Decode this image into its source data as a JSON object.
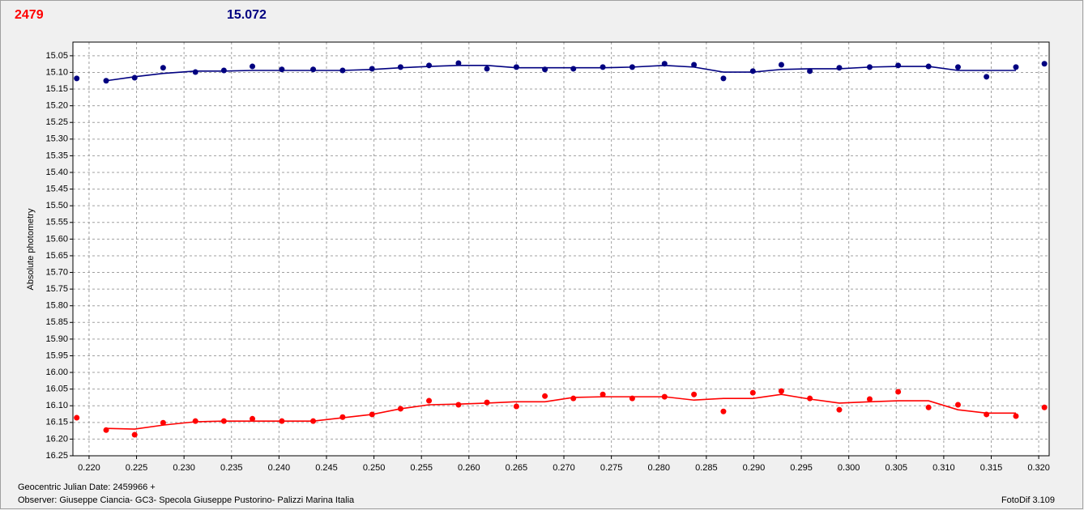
{
  "chart_data": {
    "type": "scatter",
    "header_labels": [
      {
        "text": "2479",
        "color": "#ff0000"
      },
      {
        "text": "15.072",
        "color": "#000080"
      }
    ],
    "ylabel": "Absolute photometry",
    "footer": [
      "Geocentric Julian Date: 2459966 +",
      "Observer: Giuseppe Ciancia- GC3- Specola Giuseppe Pustorino- Palizzi Marina Italia"
    ],
    "credit": "FotoDif 3.109",
    "grid": true,
    "xlim": [
      0.2183,
      0.3211
    ],
    "ylim": [
      16.25,
      15.009
    ],
    "xticks": [
      {
        "value": 0.22,
        "label": "0.220"
      },
      0.225,
      {
        "value": 0.23,
        "label": "0.230"
      },
      0.235,
      {
        "value": 0.24,
        "label": "0.240"
      },
      0.245,
      {
        "value": 0.25,
        "label": "0.250"
      },
      0.255,
      {
        "value": 0.26,
        "label": "0.260"
      },
      0.265,
      {
        "value": 0.27,
        "label": "0.270"
      },
      0.275,
      {
        "value": 0.28,
        "label": "0.280"
      },
      0.285,
      {
        "value": 0.29,
        "label": "0.290"
      },
      0.295,
      {
        "value": 0.3,
        "label": "0.300"
      },
      0.305,
      {
        "value": 0.31,
        "label": "0.310"
      },
      0.315,
      {
        "value": 0.32,
        "label": "0.320"
      }
    ],
    "yticks": [
      15.05,
      {
        "value": 15.1,
        "label": "15.10"
      },
      15.15,
      {
        "value": 15.2,
        "label": "15.20"
      },
      15.25,
      {
        "value": 15.3,
        "label": "15.30"
      },
      15.35,
      {
        "value": 15.4,
        "label": "15.40"
      },
      15.45,
      {
        "value": 15.5,
        "label": "15.50"
      },
      15.55,
      {
        "value": 15.6,
        "label": "15.60"
      },
      15.65,
      {
        "value": 15.7,
        "label": "15.70"
      },
      15.75,
      {
        "value": 15.8,
        "label": "15.80"
      },
      15.85,
      {
        "value": 15.9,
        "label": "15.90"
      },
      15.95,
      {
        "value": 16,
        "label": "16.00"
      },
      16.05,
      {
        "value": 16.1,
        "label": "16.10"
      },
      16.15,
      {
        "value": 16.2,
        "label": "16.20"
      },
      16.25
    ],
    "x": [
      0.2187,
      0.2218,
      0.2248,
      0.2278,
      0.2312,
      0.2342,
      0.2372,
      0.2403,
      0.2436,
      0.2467,
      0.2498,
      0.2528,
      0.2558,
      0.2589,
      0.2619,
      0.265,
      0.268,
      0.271,
      0.2741,
      0.2772,
      0.2806,
      0.2837,
      0.2868,
      0.2899,
      0.2929,
      0.2959,
      0.299,
      0.3022,
      0.3052,
      0.3084,
      0.3115,
      0.3145,
      0.3176,
      0.3206
    ],
    "series": [
      {
        "style": "markers",
        "color": "#000080",
        "values": [
          15.118,
          15.125,
          15.116,
          15.086,
          15.099,
          15.094,
          15.082,
          15.091,
          15.091,
          15.094,
          15.089,
          15.084,
          15.079,
          15.072,
          15.089,
          15.084,
          15.091,
          15.089,
          15.084,
          15.084,
          15.074,
          15.077,
          15.118,
          15.096,
          15.077,
          15.096,
          15.086,
          15.084,
          15.079,
          15.082,
          15.084,
          15.113,
          15.084,
          15.074
        ]
      },
      {
        "style": "line",
        "color": "#000080",
        "values": [
          null,
          15.125,
          15.113,
          15.103,
          15.096,
          15.096,
          15.094,
          15.094,
          15.094,
          15.094,
          15.091,
          15.086,
          15.082,
          15.079,
          15.079,
          15.086,
          15.086,
          15.086,
          15.086,
          15.084,
          15.079,
          15.084,
          15.099,
          15.099,
          15.091,
          15.089,
          15.089,
          15.084,
          15.082,
          15.082,
          15.094,
          15.094,
          15.094,
          null
        ]
      },
      {
        "style": "markers",
        "color": "#ff0000",
        "values": [
          16.136,
          16.173,
          16.187,
          16.151,
          16.146,
          16.146,
          16.139,
          16.146,
          16.146,
          16.134,
          16.126,
          16.109,
          16.085,
          16.097,
          16.09,
          16.102,
          16.071,
          16.078,
          16.066,
          16.078,
          16.073,
          16.066,
          16.117,
          16.061,
          16.056,
          16.078,
          16.112,
          16.08,
          16.058,
          16.105,
          16.097,
          16.126,
          16.131,
          16.105
        ]
      },
      {
        "style": "line",
        "color": "#ff0000",
        "values": [
          null,
          16.168,
          16.17,
          16.158,
          16.148,
          16.146,
          16.146,
          16.146,
          16.146,
          16.136,
          16.126,
          16.109,
          16.097,
          16.095,
          16.092,
          16.088,
          16.088,
          16.075,
          16.073,
          16.073,
          16.073,
          16.083,
          16.078,
          16.078,
          16.066,
          16.08,
          16.092,
          16.088,
          16.085,
          16.085,
          16.112,
          16.122,
          16.122,
          null
        ]
      }
    ]
  }
}
